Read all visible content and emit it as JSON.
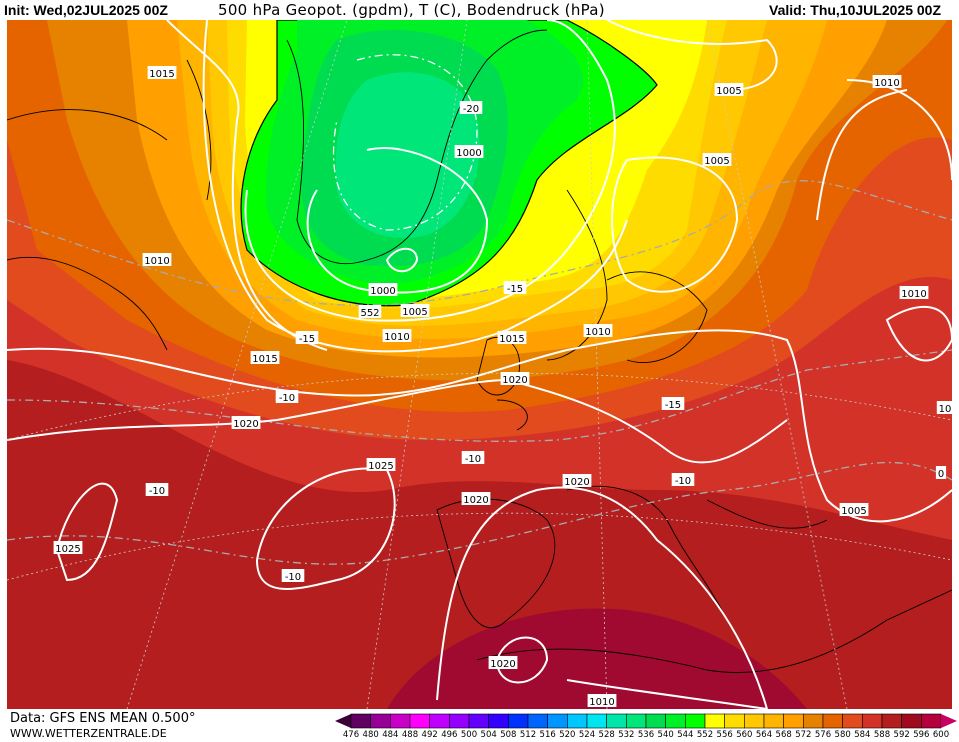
{
  "header": {
    "init": "Init: Wed,02JUL2025 00Z",
    "title": "500 hPa Geopot. (gpdm), T (C), Bodendruck (hPa)",
    "valid": "Valid: Thu,10JUL2025 00Z"
  },
  "footer": {
    "data_source": "Data: GFS ENS MEAN 0.500°",
    "website": "WWW.WETTERZENTRALE.DE"
  },
  "colorbar": {
    "ticks": [
      "476",
      "480",
      "484",
      "488",
      "492",
      "496",
      "500",
      "504",
      "508",
      "512",
      "516",
      "520",
      "524",
      "528",
      "532",
      "536",
      "540",
      "544",
      "552",
      "556",
      "560",
      "564",
      "568",
      "572",
      "576",
      "580",
      "584",
      "588",
      "592",
      "596",
      "600"
    ],
    "colors": [
      "#600060",
      "#960096",
      "#c800c8",
      "#ff00ff",
      "#c000ff",
      "#9600ff",
      "#6400ff",
      "#3200ff",
      "#0032ff",
      "#0064ff",
      "#0096ff",
      "#00c8ff",
      "#00e6f0",
      "#00e6aa",
      "#00e678",
      "#00dc50",
      "#00f028",
      "#00ff00",
      "#ffff00",
      "#ffdc00",
      "#ffc800",
      "#ffb400",
      "#ffa000",
      "#e68200",
      "#e66400",
      "#e14b1e",
      "#d23228",
      "#b41e1e",
      "#a00a1e",
      "#b4003c"
    ],
    "low_end_color": "#3c0038",
    "high_end_color": "#c80064"
  },
  "map": {
    "pressure_labels": [
      {
        "text": "1015"
      },
      {
        "text": "1010"
      },
      {
        "text": "1005"
      },
      {
        "text": "1000"
      },
      {
        "text": "1000"
      },
      {
        "text": "1005"
      },
      {
        "text": "1010"
      },
      {
        "text": "1015"
      },
      {
        "text": "1020"
      },
      {
        "text": "1025"
      },
      {
        "text": "1025"
      },
      {
        "text": "1020"
      },
      {
        "text": "1020"
      },
      {
        "text": "1020"
      },
      {
        "text": "1005"
      },
      {
        "text": "1010"
      },
      {
        "text": "1010"
      },
      {
        "text": "1010"
      },
      {
        "text": "1015"
      },
      {
        "text": "1020"
      },
      {
        "text": "1010"
      },
      {
        "text": "1005"
      },
      {
        "text": "10"
      },
      {
        "text": "0"
      }
    ],
    "temperature_labels": [
      {
        "text": "-20"
      },
      {
        "text": "-15"
      },
      {
        "text": "-15"
      },
      {
        "text": "-10"
      },
      {
        "text": "-10"
      },
      {
        "text": "-10"
      },
      {
        "text": "-10"
      },
      {
        "text": "-15"
      },
      {
        "text": "-10"
      }
    ],
    "geopotential_labels": [
      {
        "text": "552"
      }
    ]
  }
}
